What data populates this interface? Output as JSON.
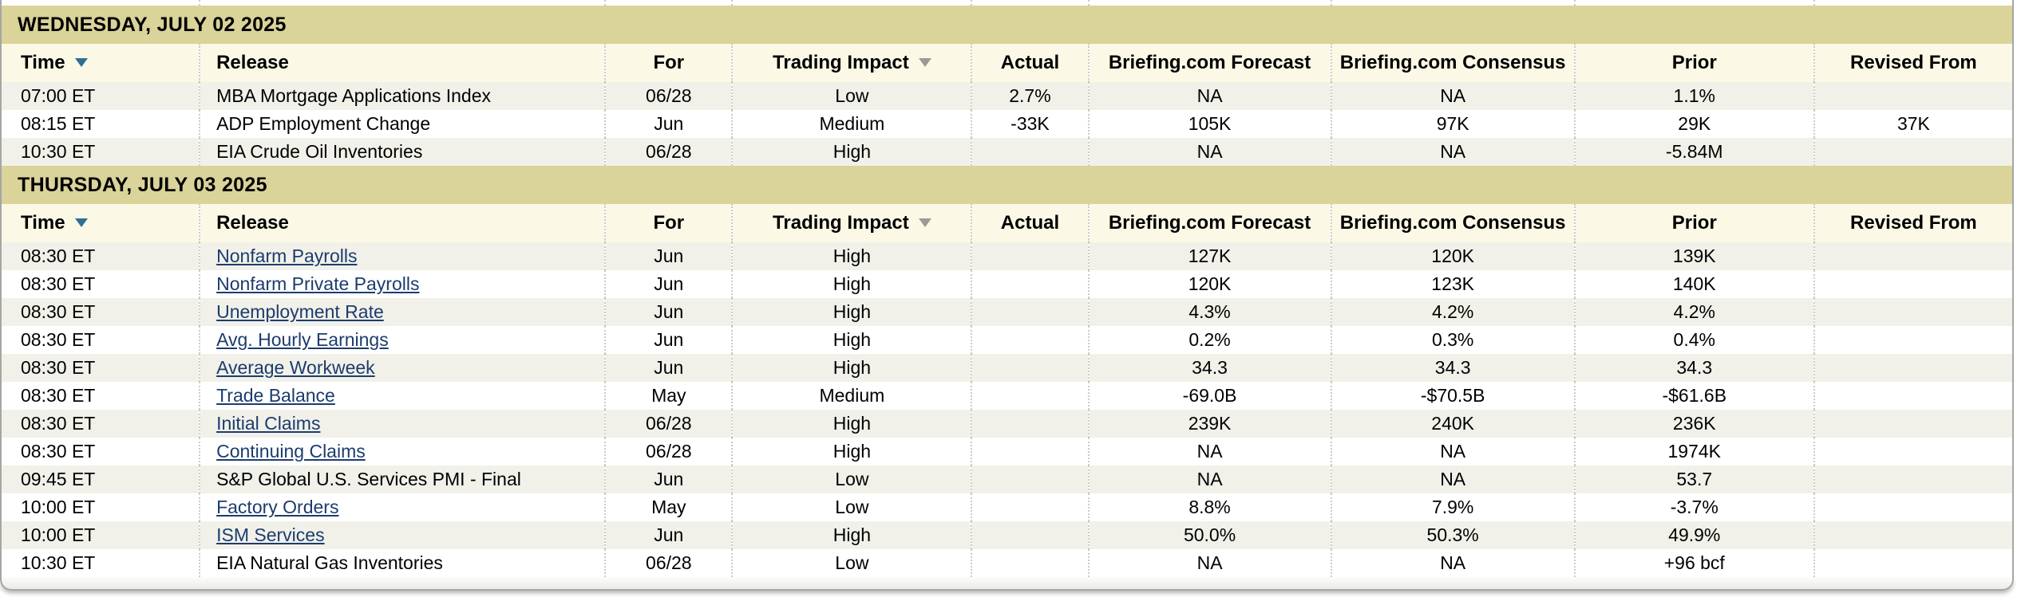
{
  "colors": {
    "date_band_bg": "#dad39a",
    "column_header_bg": "#fbf9e6",
    "alt_row_bg": "#f1f1ea",
    "link_color": "#1c3c6d",
    "sort_arrow_blue": "#2e6f99",
    "sort_arrow_gray": "#9a9a9a"
  },
  "icons": {
    "time_sort": "sort-down-arrow-icon",
    "trading_impact_sort": "sort-down-arrow-icon"
  },
  "table": {
    "columns": [
      {
        "id": "time",
        "label": "Time",
        "align": "left",
        "sortable": true,
        "sort_icon": "blue"
      },
      {
        "id": "release",
        "label": "Release",
        "align": "left",
        "sortable": false
      },
      {
        "id": "for",
        "label": "For",
        "align": "center",
        "sortable": false
      },
      {
        "id": "impact",
        "label": "Trading Impact",
        "align": "center",
        "sortable": true,
        "sort_icon": "gray"
      },
      {
        "id": "actual",
        "label": "Actual",
        "align": "center",
        "sortable": false
      },
      {
        "id": "forecast",
        "label": "Briefing.com Forecast",
        "align": "center",
        "sortable": false
      },
      {
        "id": "consensus",
        "label": "Briefing.com Consensus",
        "align": "center",
        "sortable": false
      },
      {
        "id": "prior",
        "label": "Prior",
        "align": "center",
        "sortable": false
      },
      {
        "id": "revised",
        "label": "Revised From",
        "align": "center",
        "sortable": false
      }
    ],
    "sections": [
      {
        "date_header": "WEDNESDAY, JULY 02 2025",
        "rows": [
          {
            "time": "07:00 ET",
            "release": "MBA Mortgage Applications Index",
            "link": false,
            "for": "06/28",
            "impact": "Low",
            "actual": "2.7%",
            "forecast": "NA",
            "consensus": "NA",
            "prior": "1.1%",
            "revised": ""
          },
          {
            "time": "08:15 ET",
            "release": "ADP Employment Change",
            "link": false,
            "for": "Jun",
            "impact": "Medium",
            "actual": "-33K",
            "forecast": "105K",
            "consensus": "97K",
            "prior": "29K",
            "revised": "37K"
          },
          {
            "time": "10:30 ET",
            "release": "EIA Crude Oil Inventories",
            "link": false,
            "for": "06/28",
            "impact": "High",
            "actual": "",
            "forecast": "NA",
            "consensus": "NA",
            "prior": "-5.84M",
            "revised": ""
          }
        ]
      },
      {
        "date_header": "THURSDAY, JULY 03 2025",
        "rows": [
          {
            "time": "08:30 ET",
            "release": "Nonfarm Payrolls",
            "link": true,
            "for": "Jun",
            "impact": "High",
            "actual": "",
            "forecast": "127K",
            "consensus": "120K",
            "prior": "139K",
            "revised": ""
          },
          {
            "time": "08:30 ET",
            "release": "Nonfarm Private Payrolls",
            "link": true,
            "for": "Jun",
            "impact": "High",
            "actual": "",
            "forecast": "120K",
            "consensus": "123K",
            "prior": "140K",
            "revised": ""
          },
          {
            "time": "08:30 ET",
            "release": "Unemployment Rate",
            "link": true,
            "for": "Jun",
            "impact": "High",
            "actual": "",
            "forecast": "4.3%",
            "consensus": "4.2%",
            "prior": "4.2%",
            "revised": ""
          },
          {
            "time": "08:30 ET",
            "release": "Avg. Hourly Earnings",
            "link": true,
            "for": "Jun",
            "impact": "High",
            "actual": "",
            "forecast": "0.2%",
            "consensus": "0.3%",
            "prior": "0.4%",
            "revised": ""
          },
          {
            "time": "08:30 ET",
            "release": "Average Workweek",
            "link": true,
            "for": "Jun",
            "impact": "High",
            "actual": "",
            "forecast": "34.3",
            "consensus": "34.3",
            "prior": "34.3",
            "revised": ""
          },
          {
            "time": "08:30 ET",
            "release": "Trade Balance",
            "link": true,
            "for": "May",
            "impact": "Medium",
            "actual": "",
            "forecast": "-69.0B",
            "consensus": "-$70.5B",
            "prior": "-$61.6B",
            "revised": ""
          },
          {
            "time": "08:30 ET",
            "release": "Initial Claims",
            "link": true,
            "for": "06/28",
            "impact": "High",
            "actual": "",
            "forecast": "239K",
            "consensus": "240K",
            "prior": "236K",
            "revised": ""
          },
          {
            "time": "08:30 ET",
            "release": "Continuing Claims",
            "link": true,
            "for": "06/28",
            "impact": "High",
            "actual": "",
            "forecast": "NA",
            "consensus": "NA",
            "prior": "1974K",
            "revised": ""
          },
          {
            "time": "09:45 ET",
            "release": "S&P Global U.S. Services PMI - Final",
            "link": false,
            "for": "Jun",
            "impact": "Low",
            "actual": "",
            "forecast": "NA",
            "consensus": "NA",
            "prior": "53.7",
            "revised": ""
          },
          {
            "time": "10:00 ET",
            "release": "Factory Orders",
            "link": true,
            "for": "May",
            "impact": "Low",
            "actual": "",
            "forecast": "8.8%",
            "consensus": "7.9%",
            "prior": "-3.7%",
            "revised": ""
          },
          {
            "time": "10:00 ET",
            "release": "ISM Services",
            "link": true,
            "for": "Jun",
            "impact": "High",
            "actual": "",
            "forecast": "50.0%",
            "consensus": "50.3%",
            "prior": "49.9%",
            "revised": ""
          },
          {
            "time": "10:30 ET",
            "release": "EIA Natural Gas Inventories",
            "link": false,
            "for": "06/28",
            "impact": "Low",
            "actual": "",
            "forecast": "NA",
            "consensus": "NA",
            "prior": "+96 bcf",
            "revised": ""
          }
        ]
      }
    ]
  }
}
